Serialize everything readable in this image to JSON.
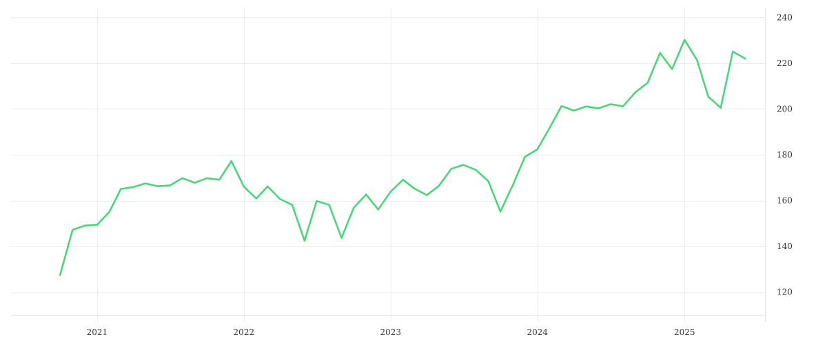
{
  "chart_data": {
    "type": "line",
    "xlabel": "",
    "ylabel": "",
    "x_axis_type": "date",
    "xlim": [
      "2020-06-01",
      "2025-07-20"
    ],
    "ylim": [
      110,
      244
    ],
    "y_axis_position": "right",
    "grid": true,
    "x_ticks": [
      {
        "date": "2021-01-01",
        "label": "2021"
      },
      {
        "date": "2022-01-01",
        "label": "2022"
      },
      {
        "date": "2023-01-01",
        "label": "2023"
      },
      {
        "date": "2024-01-01",
        "label": "2024"
      },
      {
        "date": "2025-01-01",
        "label": "2025"
      }
    ],
    "y_ticks": [
      120,
      140,
      160,
      180,
      200,
      220,
      240
    ],
    "colors": {
      "line": "#4cd47a",
      "grid": "#ececec",
      "tick_text": "#333333"
    },
    "series": [
      {
        "color": "#4cd47a",
        "x": [
          "2020-10-01",
          "2020-11-01",
          "2020-12-01",
          "2021-01-01",
          "2021-02-01",
          "2021-03-01",
          "2021-04-01",
          "2021-05-01",
          "2021-06-01",
          "2021-07-01",
          "2021-08-01",
          "2021-09-01",
          "2021-10-01",
          "2021-11-01",
          "2021-12-01",
          "2022-01-01",
          "2022-02-01",
          "2022-03-01",
          "2022-04-01",
          "2022-05-01",
          "2022-06-01",
          "2022-07-01",
          "2022-08-01",
          "2022-09-01",
          "2022-10-01",
          "2022-11-01",
          "2022-12-01",
          "2023-01-01",
          "2023-02-01",
          "2023-03-01",
          "2023-04-01",
          "2023-05-01",
          "2023-06-01",
          "2023-07-01",
          "2023-08-01",
          "2023-09-01",
          "2023-10-01",
          "2023-11-01",
          "2023-12-01",
          "2024-01-01",
          "2024-02-01",
          "2024-03-01",
          "2024-04-01",
          "2024-05-01",
          "2024-06-01",
          "2024-07-01",
          "2024-08-01",
          "2024-09-01",
          "2024-10-01",
          "2024-11-01",
          "2024-12-01",
          "2025-01-01",
          "2025-02-01",
          "2025-03-01",
          "2025-04-01",
          "2025-05-01",
          "2025-06-01"
        ],
        "values": [
          127.5,
          147.2,
          149.1,
          149.4,
          155.2,
          165.1,
          165.9,
          167.5,
          166.3,
          166.6,
          169.8,
          167.8,
          169.8,
          169.1,
          177.3,
          166.1,
          160.9,
          166.2,
          160.7,
          158.2,
          142.5,
          159.8,
          158.2,
          143.7,
          156.8,
          162.7,
          156.1,
          163.9,
          169.1,
          165.3,
          162.4,
          166.4,
          173.9,
          175.6,
          173.4,
          168.5,
          155.2,
          166.8,
          179.1,
          182.4,
          191.9,
          201.3,
          199.3,
          201.1,
          200.3,
          202.1,
          201.2,
          207.4,
          211.4,
          224.5,
          217.4,
          230.2,
          221.4,
          205.4,
          200.5,
          225.1,
          222.0
        ]
      }
    ]
  }
}
